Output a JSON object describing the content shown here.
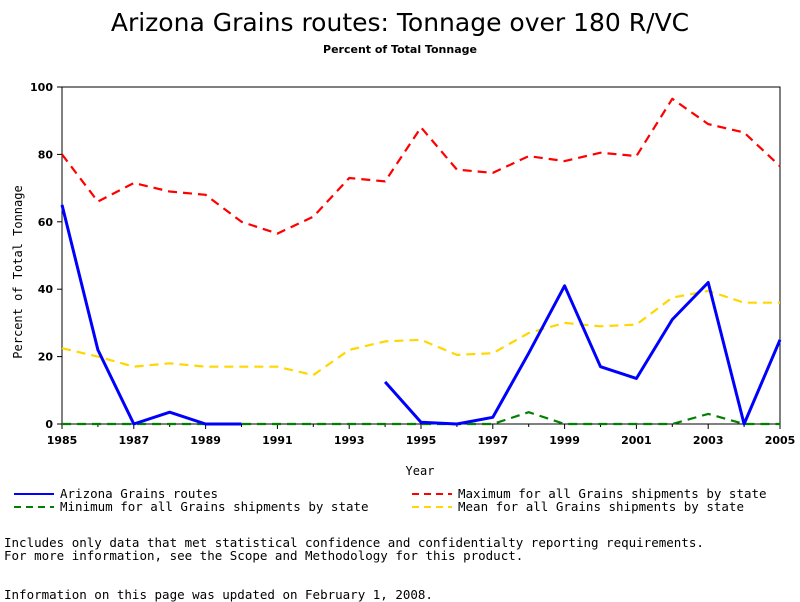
{
  "chart_data": {
    "type": "line",
    "title": "Arizona Grains routes: Tonnage over 180 R/VC",
    "subtitle": "Percent of Total Tonnage",
    "xlabel": "Year",
    "ylabel": "Percent of Total Tonnage",
    "xlim": [
      1985,
      2005
    ],
    "ylim": [
      0,
      100
    ],
    "xticks": [
      "1985",
      "1987",
      "1989",
      "1991",
      "1993",
      "1995",
      "1997",
      "1999",
      "2001",
      "2003",
      "2005"
    ],
    "yticks": [
      "0",
      "20",
      "40",
      "60",
      "80",
      "100"
    ],
    "x": [
      1985,
      1986,
      1987,
      1988,
      1989,
      1990,
      1991,
      1992,
      1993,
      1994,
      1995,
      1996,
      1997,
      1998,
      1999,
      2000,
      2001,
      2002,
      2003,
      2004,
      2005
    ],
    "series": [
      {
        "name": "Arizona Grains routes",
        "color": "#0000ff",
        "style": "solid",
        "values": [
          65,
          22,
          0,
          3.5,
          0,
          0,
          null,
          null,
          null,
          12.5,
          0.5,
          0,
          2,
          21,
          41,
          17,
          13.5,
          31,
          42,
          0,
          25
        ]
      },
      {
        "name": "Maximum for all Grains shipments by state",
        "color": "#ff0000",
        "style": "dashed",
        "values": [
          80,
          66,
          71.5,
          69,
          68,
          60,
          56.5,
          61.5,
          73,
          72,
          88,
          75.5,
          74.5,
          79.5,
          78,
          80.5,
          79.5,
          96.5,
          89,
          86.5,
          76.5
        ]
      },
      {
        "name": "Minimum for all Grains shipments by state",
        "color": "#008000",
        "style": "dashed",
        "values": [
          0,
          0,
          0,
          0,
          0,
          0,
          0,
          0,
          0,
          0,
          0,
          0,
          0,
          3.5,
          0,
          0,
          0,
          0,
          3,
          0,
          0
        ]
      },
      {
        "name": "Mean for all Grains shipments by state",
        "color": "#ffd700",
        "style": "dashed",
        "values": [
          22.5,
          20,
          17,
          18,
          17,
          17,
          17,
          14.5,
          22,
          24.5,
          25,
          20.5,
          21,
          27,
          30,
          29,
          29.5,
          37.5,
          39.5,
          36,
          36
        ]
      }
    ],
    "legend": "bottom",
    "grid": false
  },
  "notes": {
    "line1": "Includes only data that met statistical confidence and confidentialty reporting requirements.",
    "line2": "For more information, see the Scope and Methodology for this product.",
    "line3": "Information on this page was updated on February 1, 2008."
  }
}
